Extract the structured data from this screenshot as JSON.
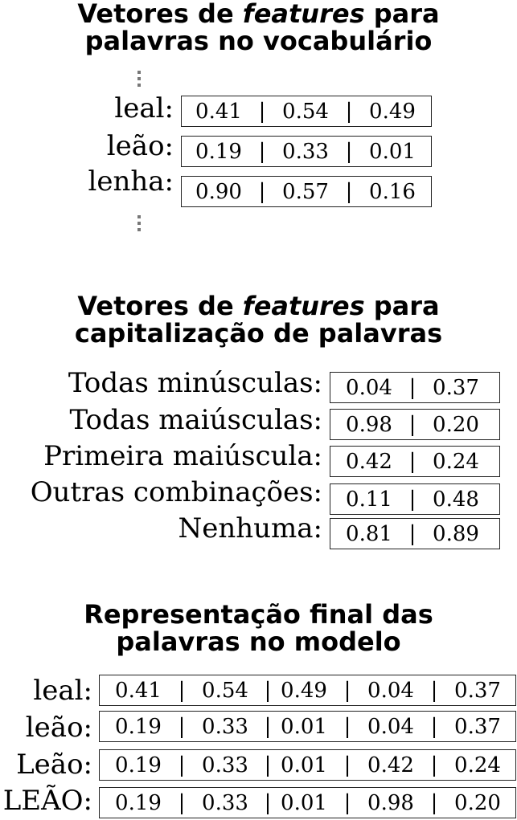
{
  "section1": {
    "title_line1_pre": "Vetores de ",
    "title_line1_em": "features",
    "title_line1_post": " para",
    "title_line2": "palavras no vocabulário",
    "rows": [
      {
        "label": "leal:",
        "values": [
          "0.41",
          "|",
          "0.54",
          "|",
          "0.49"
        ]
      },
      {
        "label": "leão:",
        "values": [
          "0.19",
          "|",
          "0.33",
          "|",
          "0.01"
        ]
      },
      {
        "label": "lenha:",
        "values": [
          "0.90",
          "|",
          "0.57",
          "|",
          "0.16"
        ]
      }
    ]
  },
  "section2": {
    "title_line1_pre": "Vetores de ",
    "title_line1_em": "features",
    "title_line1_post": " para",
    "title_line2": "capitalização de palavras",
    "rows": [
      {
        "label": "Todas minúsculas:",
        "values": [
          "0.04",
          "|",
          "0.37"
        ]
      },
      {
        "label": "Todas maiúsculas:",
        "values": [
          "0.98",
          "|",
          "0.20"
        ]
      },
      {
        "label": "Primeira maiúscula:",
        "values": [
          "0.42",
          "|",
          "0.24"
        ]
      },
      {
        "label": "Outras combinações:",
        "values": [
          "0.11",
          "|",
          "0.48"
        ]
      },
      {
        "label": "Nenhuma:",
        "values": [
          "0.81",
          "|",
          "0.89"
        ]
      }
    ]
  },
  "section3": {
    "title_line1": "Representação final das",
    "title_line2": "palavras no modelo",
    "rows": [
      {
        "label": "leal:",
        "values": [
          "0.41",
          "|",
          "0.54",
          "|",
          "0.49",
          "|",
          "0.04",
          "|",
          "0.37"
        ]
      },
      {
        "label": "leão:",
        "values": [
          "0.19",
          "|",
          "0.33",
          "|",
          "0.01",
          "|",
          "0.04",
          "|",
          "0.37"
        ]
      },
      {
        "label": "Leão:",
        "values": [
          "0.19",
          "|",
          "0.33",
          "|",
          "0.01",
          "|",
          "0.42",
          "|",
          "0.24"
        ]
      },
      {
        "label": "LEÃO:",
        "values": [
          "0.19",
          "|",
          "0.33",
          "|",
          "0.01",
          "|",
          "0.98",
          "|",
          "0.20"
        ]
      }
    ]
  }
}
